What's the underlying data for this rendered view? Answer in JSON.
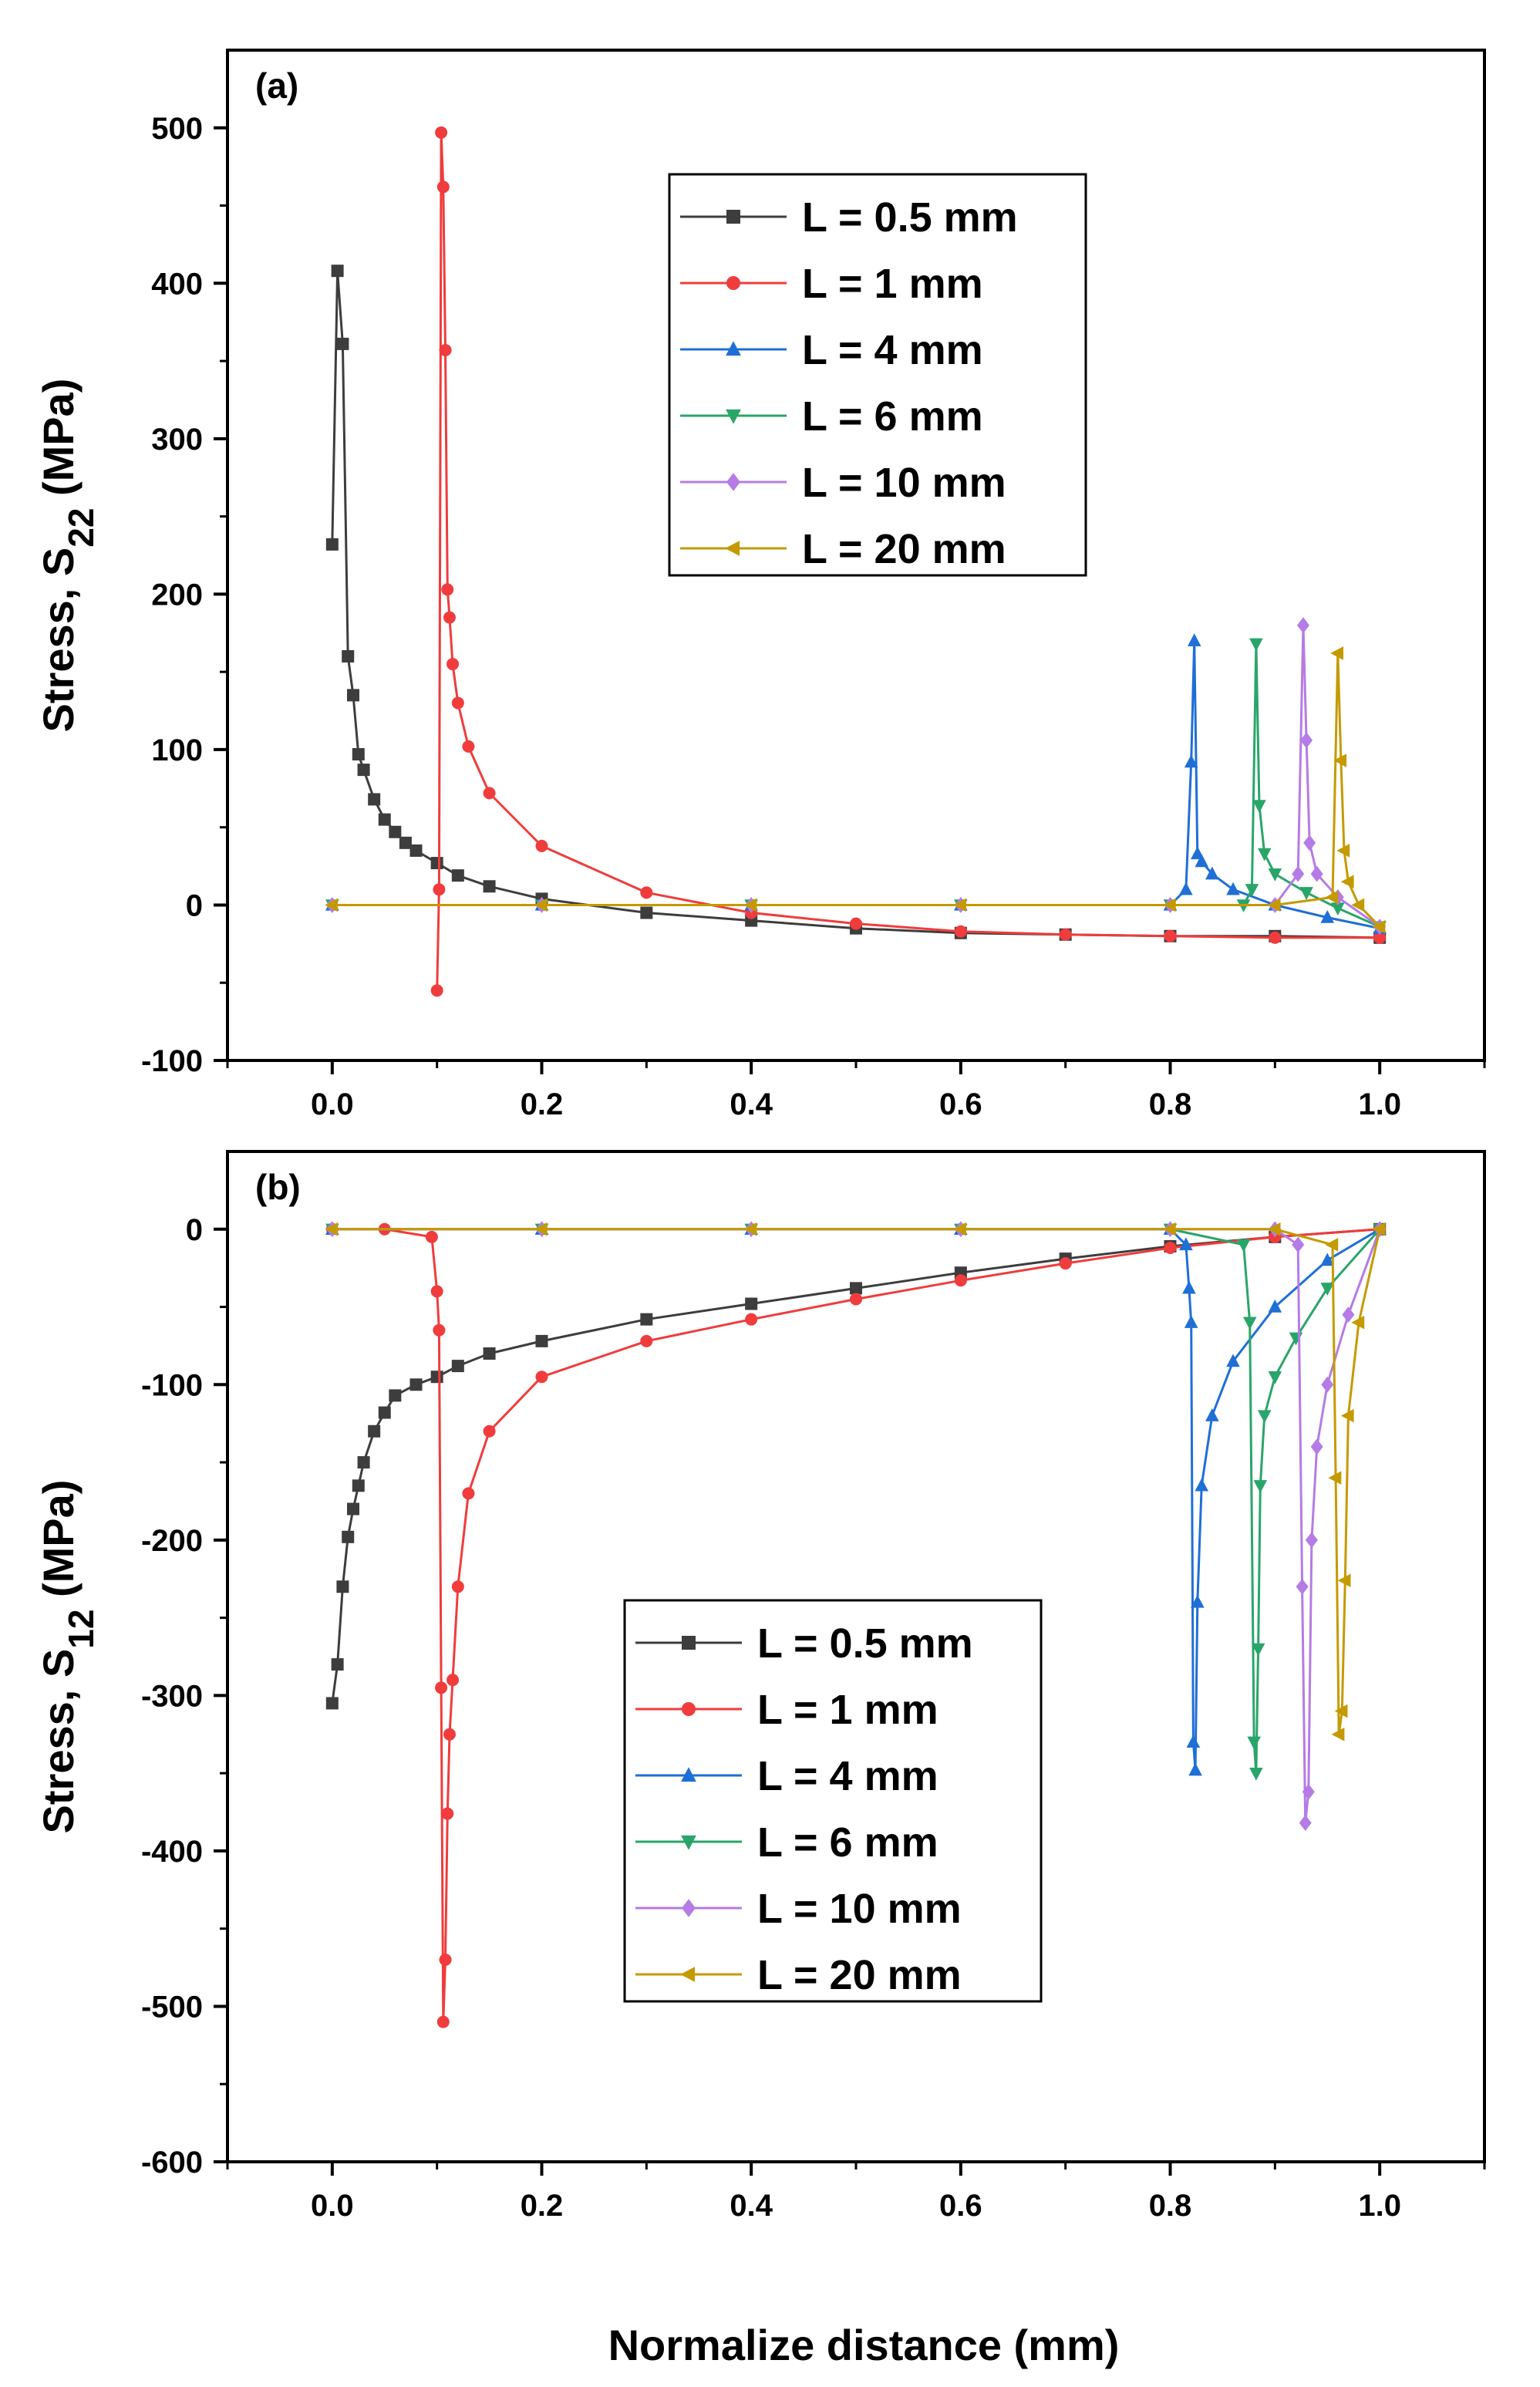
{
  "figure": {
    "xlabel": "Normalize distance (mm)"
  },
  "colors": {
    "L05": "#3d3d3d",
    "L1": "#f03c3c",
    "L4": "#1f6fd6",
    "L6": "#2aa56a",
    "L10": "#b57be6",
    "L20": "#c59a00"
  },
  "chart_data": [
    {
      "type": "line",
      "panel_label": "(a)",
      "ylabel_main": "Stress, S",
      "ylabel_sub": "22",
      "ylabel_unit": " (MPa)",
      "xlabel": "",
      "xlim": [
        -0.1,
        1.1
      ],
      "ylim": [
        -100,
        550
      ],
      "xticks": [
        0.0,
        0.2,
        0.4,
        0.6,
        0.8,
        1.0
      ],
      "xtick_labels": [
        "0.0",
        "0.2",
        "0.4",
        "0.6",
        "0.8",
        "1.0"
      ],
      "yticks": [
        -100,
        0,
        100,
        200,
        300,
        400,
        500
      ],
      "ytick_labels": [
        "-100",
        "0",
        "100",
        "200",
        "300",
        "400",
        "500"
      ],
      "legend_position": "top-right",
      "series": [
        {
          "name": "L = 0.5 mm",
          "color_key": "L05",
          "marker": "square",
          "x": [
            0.0,
            0.005,
            0.01,
            0.015,
            0.02,
            0.025,
            0.03,
            0.04,
            0.05,
            0.06,
            0.07,
            0.08,
            0.1,
            0.12,
            0.15,
            0.2,
            0.3,
            0.4,
            0.5,
            0.6,
            0.7,
            0.8,
            0.9,
            1.0
          ],
          "y": [
            232,
            408,
            361,
            160,
            135,
            97,
            87,
            68,
            55,
            47,
            40,
            35,
            27,
            19,
            12,
            4,
            -5,
            -10,
            -15,
            -18,
            -19,
            -20,
            -20,
            -21
          ]
        },
        {
          "name": "L = 1 mm",
          "color_key": "L1",
          "marker": "circle",
          "x": [
            0.1,
            0.102,
            0.104,
            0.106,
            0.108,
            0.11,
            0.112,
            0.115,
            0.12,
            0.13,
            0.15,
            0.2,
            0.3,
            0.4,
            0.5,
            0.6,
            0.7,
            0.8,
            0.9,
            1.0
          ],
          "y": [
            -55,
            10,
            497,
            462,
            357,
            203,
            185,
            155,
            130,
            102,
            72,
            38,
            8,
            -5,
            -12,
            -17,
            -19,
            -20,
            -21,
            -21
          ]
        },
        {
          "name": "L = 4 mm",
          "color_key": "L4",
          "marker": "triangle-up",
          "x": [
            0.0,
            0.2,
            0.4,
            0.6,
            0.8,
            0.815,
            0.82,
            0.823,
            0.826,
            0.83,
            0.84,
            0.86,
            0.9,
            0.95,
            1.0
          ],
          "y": [
            0,
            0,
            0,
            0,
            0,
            10,
            92,
            170,
            33,
            28,
            20,
            10,
            0,
            -8,
            -15
          ]
        },
        {
          "name": "L = 6 mm",
          "color_key": "L6",
          "marker": "triangle-down",
          "x": [
            0.0,
            0.2,
            0.4,
            0.6,
            0.8,
            0.87,
            0.878,
            0.882,
            0.885,
            0.89,
            0.9,
            0.93,
            0.96,
            1.0
          ],
          "y": [
            0,
            0,
            0,
            0,
            0,
            0,
            10,
            168,
            64,
            33,
            20,
            8,
            -2,
            -14
          ]
        },
        {
          "name": "L = 10 mm",
          "color_key": "L10",
          "marker": "diamond",
          "x": [
            0.0,
            0.2,
            0.4,
            0.6,
            0.8,
            0.9,
            0.922,
            0.927,
            0.93,
            0.933,
            0.94,
            0.96,
            1.0
          ],
          "y": [
            0,
            0,
            0,
            0,
            0,
            0,
            20,
            180,
            106,
            40,
            20,
            5,
            -14
          ]
        },
        {
          "name": "L = 20 mm",
          "color_key": "L20",
          "marker": "triangle-left",
          "x": [
            0.0,
            0.2,
            0.4,
            0.6,
            0.8,
            0.9,
            0.955,
            0.96,
            0.963,
            0.966,
            0.97,
            0.98,
            1.0
          ],
          "y": [
            0,
            0,
            0,
            0,
            0,
            0,
            5,
            162,
            93,
            35,
            15,
            0,
            -14
          ]
        }
      ]
    },
    {
      "type": "line",
      "panel_label": "(b)",
      "ylabel_main": "Stress, S",
      "ylabel_sub": "12",
      "ylabel_unit": " (MPa)",
      "xlabel": "Normalize distance (mm)",
      "xlim": [
        -0.1,
        1.1
      ],
      "ylim": [
        -600,
        50
      ],
      "xticks": [
        0.0,
        0.2,
        0.4,
        0.6,
        0.8,
        1.0
      ],
      "xtick_labels": [
        "0.0",
        "0.2",
        "0.4",
        "0.6",
        "0.8",
        "1.0"
      ],
      "yticks": [
        -600,
        -500,
        -400,
        -300,
        -200,
        -100,
        0
      ],
      "ytick_labels": [
        "-600",
        "-500",
        "-400",
        "-300",
        "-200",
        "-100",
        "0"
      ],
      "legend_position": "bottom-center",
      "series": [
        {
          "name": "L = 0.5 mm",
          "color_key": "L05",
          "marker": "square",
          "x": [
            0.0,
            0.005,
            0.01,
            0.015,
            0.02,
            0.025,
            0.03,
            0.04,
            0.05,
            0.06,
            0.08,
            0.1,
            0.12,
            0.15,
            0.2,
            0.3,
            0.4,
            0.5,
            0.6,
            0.7,
            0.8,
            0.9,
            1.0
          ],
          "y": [
            -305,
            -280,
            -230,
            -198,
            -180,
            -165,
            -150,
            -130,
            -118,
            -107,
            -100,
            -95,
            -88,
            -80,
            -72,
            -58,
            -48,
            -38,
            -28,
            -19,
            -11,
            -5,
            0
          ]
        },
        {
          "name": "L = 1 mm",
          "color_key": "L1",
          "marker": "circle",
          "x": [
            0.0,
            0.05,
            0.095,
            0.1,
            0.102,
            0.104,
            0.106,
            0.108,
            0.11,
            0.112,
            0.115,
            0.12,
            0.13,
            0.15,
            0.2,
            0.3,
            0.4,
            0.5,
            0.6,
            0.7,
            0.8,
            0.9,
            1.0
          ],
          "y": [
            0,
            0,
            -5,
            -40,
            -65,
            -295,
            -510,
            -470,
            -376,
            -325,
            -290,
            -230,
            -170,
            -130,
            -95,
            -72,
            -58,
            -45,
            -33,
            -22,
            -12,
            -5,
            0
          ]
        },
        {
          "name": "L = 4 mm",
          "color_key": "L4",
          "marker": "triangle-up",
          "x": [
            0.0,
            0.2,
            0.4,
            0.6,
            0.8,
            0.815,
            0.818,
            0.82,
            0.822,
            0.824,
            0.826,
            0.83,
            0.84,
            0.86,
            0.9,
            0.95,
            1.0
          ],
          "y": [
            0,
            0,
            0,
            0,
            0,
            -10,
            -38,
            -60,
            -330,
            -348,
            -240,
            -165,
            -120,
            -85,
            -50,
            -20,
            0
          ]
        },
        {
          "name": "L = 6 mm",
          "color_key": "L6",
          "marker": "triangle-down",
          "x": [
            0.0,
            0.2,
            0.4,
            0.6,
            0.8,
            0.87,
            0.876,
            0.88,
            0.882,
            0.884,
            0.886,
            0.89,
            0.9,
            0.92,
            0.95,
            1.0
          ],
          "y": [
            0,
            0,
            0,
            0,
            0,
            -10,
            -60,
            -330,
            -350,
            -270,
            -165,
            -120,
            -95,
            -70,
            -38,
            0
          ]
        },
        {
          "name": "L = 10 mm",
          "color_key": "L10",
          "marker": "diamond",
          "x": [
            0.0,
            0.2,
            0.4,
            0.6,
            0.8,
            0.9,
            0.922,
            0.926,
            0.929,
            0.932,
            0.935,
            0.94,
            0.95,
            0.97,
            1.0
          ],
          "y": [
            0,
            0,
            0,
            0,
            0,
            0,
            -10,
            -230,
            -382,
            -362,
            -200,
            -140,
            -100,
            -55,
            0
          ]
        },
        {
          "name": "L = 20 mm",
          "color_key": "L20",
          "marker": "triangle-left",
          "x": [
            0.0,
            0.2,
            0.4,
            0.6,
            0.8,
            0.9,
            0.955,
            0.958,
            0.961,
            0.964,
            0.967,
            0.97,
            0.98,
            1.0
          ],
          "y": [
            0,
            0,
            0,
            0,
            0,
            0,
            -10,
            -160,
            -325,
            -310,
            -226,
            -120,
            -60,
            0
          ]
        }
      ]
    }
  ]
}
